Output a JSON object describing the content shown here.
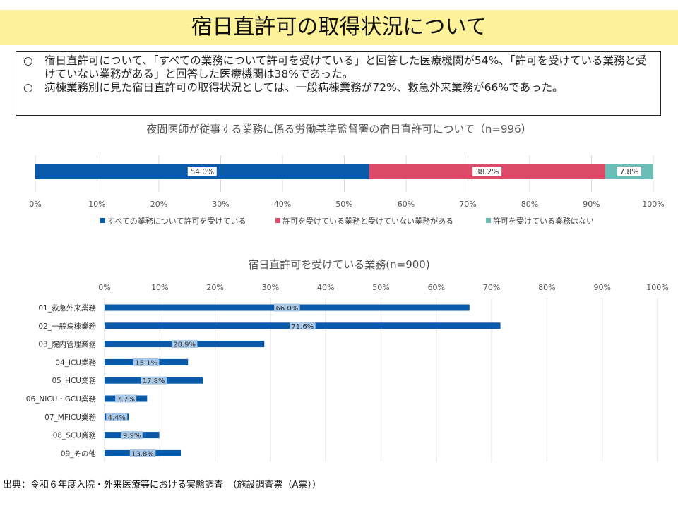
{
  "page": {
    "title": "宿日直許可の取得状況について",
    "summary": [
      {
        "bullet": "○",
        "text": "宿日直許可について、「すべての業務について許可を受けている」と回答した医療機関が54%、「許可を受けている業務と受けていない業務がある」と回答した医療機関は38%であった。"
      },
      {
        "bullet": "○",
        "text": "病棟業務別に見た宿日直許可の取得状況としては、一般病棟業務が72%、救急外来業務が66%であった。"
      }
    ],
    "source": "出典：令和６年度入院・外来医療等における実態調査　（施設調査票（A票））"
  },
  "chart_data": [
    {
      "type": "bar",
      "orientation": "horizontal-stacked-100",
      "title": "夜間医師が従事する業務に係る労働基準監督署の宿日直許可について（n=996）",
      "series": [
        {
          "name": "すべての業務について許可を受けている",
          "values": [
            54.0
          ],
          "label": "54.0%",
          "color": "#0a5aaa"
        },
        {
          "name": "許可を受けている業務と受けていない業務がある",
          "values": [
            38.2
          ],
          "label": "38.2%",
          "color": "#dc4b6a"
        },
        {
          "name": "許可を受けている業務はない",
          "values": [
            7.8
          ],
          "label": "7.8%",
          "color": "#6cbdb7"
        }
      ],
      "xlim": [
        0,
        100
      ],
      "xticks": [
        "0%",
        "10%",
        "20%",
        "30%",
        "40%",
        "50%",
        "60%",
        "70%",
        "80%",
        "90%",
        "100%"
      ],
      "legend_position": "bottom",
      "grid": true
    },
    {
      "type": "bar",
      "orientation": "horizontal",
      "title": "宿日直許可を受けている業務(n=900)",
      "categories": [
        "01_救急外来業務",
        "02_一般病棟業務",
        "03_院内管理業務",
        "04_ICU業務",
        "05_HCU業務",
        "06_NICU・GCU業務",
        "07_MFICU業務",
        "08_SCU業務",
        "09_その他"
      ],
      "values": [
        66.0,
        71.6,
        28.9,
        15.1,
        17.8,
        7.7,
        4.4,
        9.9,
        13.8
      ],
      "labels": [
        "66.0%",
        "71.6%",
        "28.9%",
        "15.1%",
        "17.8%",
        "7.7%",
        "4.4%",
        "9.9%",
        "13.8%"
      ],
      "color": "#0a5aaa",
      "label_bg": "#a9c8e8",
      "xlim": [
        0,
        100
      ],
      "xticks": [
        "0%",
        "10%",
        "20%",
        "30%",
        "40%",
        "50%",
        "60%",
        "70%",
        "80%",
        "90%",
        "100%"
      ],
      "axis_position": "top",
      "grid": true
    }
  ]
}
